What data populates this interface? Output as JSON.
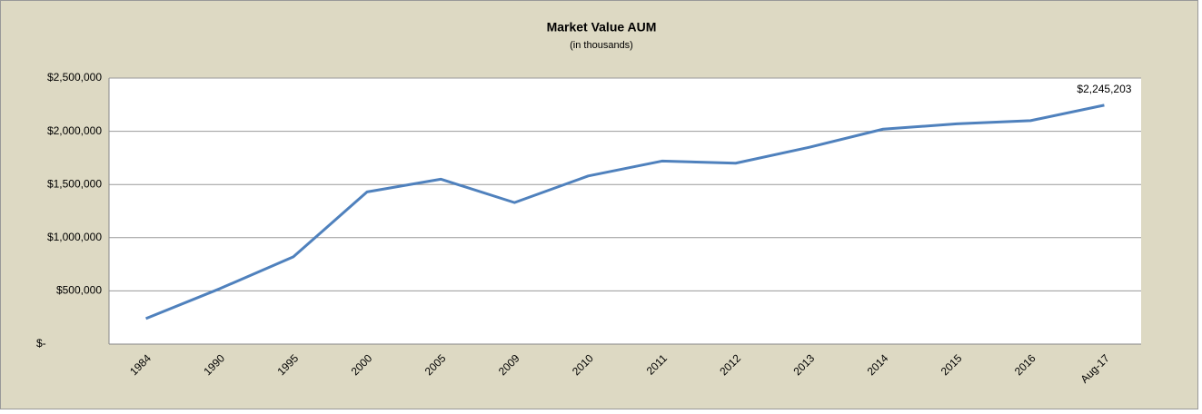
{
  "chart_data": {
    "type": "line",
    "title": "Market Value AUM",
    "subtitle": "(in thousands)",
    "categories": [
      "1984",
      "1990",
      "1995",
      "2000",
      "2005",
      "2009",
      "2010",
      "2011",
      "2012",
      "2013",
      "2014",
      "2015",
      "2016",
      "Aug-17"
    ],
    "series": [
      {
        "name": "Market Value AUM",
        "color": "#4f81bd",
        "values": [
          240000,
          520000,
          820000,
          1430000,
          1550000,
          1330000,
          1580000,
          1720000,
          1700000,
          1850000,
          2020000,
          2070000,
          2100000,
          2245203
        ],
        "value_labels": [
          null,
          null,
          null,
          null,
          null,
          null,
          null,
          null,
          null,
          null,
          null,
          null,
          null,
          "$2,245,203"
        ]
      }
    ],
    "ylim": [
      0,
      2500000
    ],
    "yticks": [
      {
        "value": 0,
        "label": "$-"
      },
      {
        "value": 500000,
        "label": "$500,000"
      },
      {
        "value": 1000000,
        "label": "$1,000,000"
      },
      {
        "value": 1500000,
        "label": "$1,500,000"
      },
      {
        "value": 2000000,
        "label": "$2,000,000"
      },
      {
        "value": 2500000,
        "label": "$2,500,000"
      }
    ],
    "grid": true
  }
}
